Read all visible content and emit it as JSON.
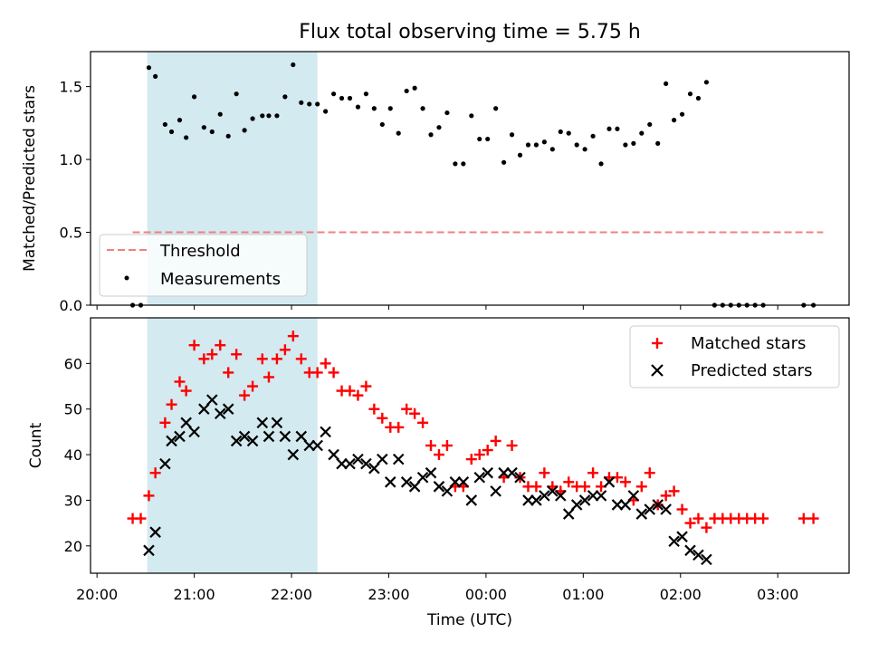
{
  "title": "Flux total observing time = 5.75 h",
  "colors": {
    "shade": "#d3eaf0",
    "threshold": "#f08080",
    "measurements": "#000000",
    "matched": "#ff0000",
    "predicted": "#000000"
  },
  "chart_data": [
    {
      "type": "scatter",
      "ylabel": "Matched/Predicted stars",
      "xlim": [
        "19:56",
        "03:44"
      ],
      "ylim": [
        0,
        1.74
      ],
      "yticks": [
        0.0,
        0.5,
        1.0,
        1.5
      ],
      "ytick_labels": [
        "0.0",
        "0.5",
        "1.0",
        "1.5"
      ],
      "shaded_interval": [
        "20:31",
        "22:16"
      ],
      "grid": false,
      "legend": {
        "position": "lower-left",
        "entries": [
          "Threshold",
          "Measurements"
        ]
      },
      "threshold": {
        "name": "Threshold",
        "value": 0.5,
        "x": [
          "20:22",
          "03:28"
        ],
        "style": "dashed"
      },
      "series": [
        {
          "name": "Measurements",
          "x": [
            "20:22",
            "20:27",
            "20:32",
            "20:36",
            "20:42",
            "20:46",
            "20:51",
            "20:55",
            "21:00",
            "21:06",
            "21:11",
            "21:16",
            "21:21",
            "21:26",
            "21:31",
            "21:36",
            "21:42",
            "21:46",
            "21:51",
            "21:56",
            "22:01",
            "22:06",
            "22:11",
            "22:16",
            "22:21",
            "22:26",
            "22:31",
            "22:36",
            "22:41",
            "22:46",
            "22:51",
            "22:56",
            "23:01",
            "23:06",
            "23:11",
            "23:16",
            "23:21",
            "23:26",
            "23:31",
            "23:36",
            "23:41",
            "23:46",
            "23:51",
            "23:56",
            "00:01",
            "00:06",
            "00:11",
            "00:16",
            "00:21",
            "00:26",
            "00:31",
            "00:36",
            "00:41",
            "00:46",
            "00:51",
            "00:56",
            "01:01",
            "01:06",
            "01:11",
            "01:16",
            "01:21",
            "01:26",
            "01:31",
            "01:36",
            "01:41",
            "01:46",
            "01:51",
            "01:56",
            "02:01",
            "02:06",
            "02:11",
            "02:16",
            "02:21",
            "02:26",
            "02:31",
            "02:36",
            "02:41",
            "02:46",
            "02:51",
            "03:16",
            "03:22"
          ],
          "y": [
            0,
            0,
            1.63,
            1.57,
            1.24,
            1.19,
            1.27,
            1.15,
            1.43,
            1.22,
            1.19,
            1.31,
            1.16,
            1.45,
            1.2,
            1.28,
            1.3,
            1.3,
            1.3,
            1.43,
            1.65,
            1.39,
            1.38,
            1.38,
            1.33,
            1.45,
            1.42,
            1.42,
            1.36,
            1.45,
            1.35,
            1.24,
            1.35,
            1.18,
            1.47,
            1.49,
            1.35,
            1.17,
            1.22,
            1.32,
            0.97,
            0.97,
            1.3,
            1.14,
            1.14,
            1.35,
            0.98,
            1.17,
            1.03,
            1.1,
            1.1,
            1.12,
            1.07,
            1.19,
            1.18,
            1.1,
            1.07,
            1.16,
            0.97,
            1.21,
            1.21,
            1.1,
            1.11,
            1.18,
            1.24,
            1.11,
            1.52,
            1.27,
            1.31,
            1.45,
            1.42,
            1.53,
            0,
            0,
            0,
            0,
            0,
            0,
            0,
            0,
            0
          ]
        }
      ]
    },
    {
      "type": "scatter",
      "xlabel": "Time (UTC)",
      "ylabel": "Count",
      "xlim": [
        "19:56",
        "03:44"
      ],
      "ylim": [
        14,
        70
      ],
      "xticks": [
        "20:00",
        "21:00",
        "22:00",
        "23:00",
        "00:00",
        "01:00",
        "02:00",
        "03:00"
      ],
      "yticks": [
        20,
        30,
        40,
        50,
        60
      ],
      "shaded_interval": [
        "20:31",
        "22:16"
      ],
      "grid": false,
      "legend": {
        "position": "top-right",
        "entries": [
          "Matched stars",
          "Predicted stars"
        ]
      },
      "series": [
        {
          "name": "Matched stars",
          "marker": "+",
          "x": [
            "20:22",
            "20:27",
            "20:32",
            "20:36",
            "20:42",
            "20:46",
            "20:51",
            "20:55",
            "21:00",
            "21:06",
            "21:11",
            "21:16",
            "21:21",
            "21:26",
            "21:31",
            "21:36",
            "21:42",
            "21:46",
            "21:51",
            "21:56",
            "22:01",
            "22:06",
            "22:11",
            "22:16",
            "22:21",
            "22:26",
            "22:31",
            "22:36",
            "22:41",
            "22:46",
            "22:51",
            "22:56",
            "23:01",
            "23:06",
            "23:11",
            "23:16",
            "23:21",
            "23:26",
            "23:31",
            "23:36",
            "23:41",
            "23:46",
            "23:51",
            "23:56",
            "00:01",
            "00:06",
            "00:11",
            "00:16",
            "00:21",
            "00:26",
            "00:31",
            "00:36",
            "00:41",
            "00:46",
            "00:51",
            "00:56",
            "01:01",
            "01:06",
            "01:11",
            "01:16",
            "01:21",
            "01:26",
            "01:31",
            "01:36",
            "01:41",
            "01:46",
            "01:51",
            "01:56",
            "02:01",
            "02:06",
            "02:11",
            "02:16",
            "02:21",
            "02:26",
            "02:31",
            "02:36",
            "02:41",
            "02:46",
            "02:51",
            "03:16",
            "03:22"
          ],
          "y": [
            26,
            26,
            31,
            36,
            47,
            51,
            56,
            54,
            64,
            61,
            62,
            64,
            58,
            62,
            53,
            55,
            61,
            57,
            61,
            63,
            66,
            61,
            58,
            58,
            60,
            58,
            54,
            54,
            53,
            55,
            50,
            48,
            46,
            46,
            50,
            49,
            47,
            42,
            40,
            42,
            33,
            33,
            39,
            40,
            41,
            43,
            35,
            42,
            35,
            33,
            33,
            36,
            33,
            32,
            34,
            33,
            33,
            36,
            33,
            35,
            35,
            34,
            30,
            33,
            36,
            29,
            31,
            32,
            28,
            25,
            26,
            24,
            26,
            26,
            26,
            26,
            26,
            26,
            26,
            26,
            26
          ]
        },
        {
          "name": "Predicted stars",
          "marker": "x",
          "x": [
            "20:32",
            "20:36",
            "20:42",
            "20:46",
            "20:51",
            "20:55",
            "21:00",
            "21:06",
            "21:11",
            "21:16",
            "21:21",
            "21:26",
            "21:31",
            "21:36",
            "21:42",
            "21:46",
            "21:51",
            "21:56",
            "22:01",
            "22:06",
            "22:11",
            "22:16",
            "22:21",
            "22:26",
            "22:31",
            "22:36",
            "22:41",
            "22:46",
            "22:51",
            "22:56",
            "23:01",
            "23:06",
            "23:11",
            "23:16",
            "23:21",
            "23:26",
            "23:31",
            "23:36",
            "23:41",
            "23:46",
            "23:51",
            "23:56",
            "00:01",
            "00:06",
            "00:11",
            "00:16",
            "00:21",
            "00:26",
            "00:31",
            "00:36",
            "00:41",
            "00:46",
            "00:51",
            "00:56",
            "01:01",
            "01:06",
            "01:11",
            "01:16",
            "01:21",
            "01:26",
            "01:31",
            "01:36",
            "01:41",
            "01:46",
            "01:51",
            "01:56",
            "02:01",
            "02:06",
            "02:11",
            "02:16"
          ],
          "y": [
            19,
            23,
            38,
            43,
            44,
            47,
            45,
            50,
            52,
            49,
            50,
            43,
            44,
            43,
            47,
            44,
            47,
            44,
            40,
            44,
            42,
            42,
            45,
            40,
            38,
            38,
            39,
            38,
            37,
            39,
            34,
            39,
            34,
            33,
            35,
            36,
            33,
            32,
            34,
            34,
            30,
            35,
            36,
            32,
            36,
            36,
            35,
            30,
            30,
            31,
            32,
            31,
            27,
            29,
            30,
            31,
            31,
            34,
            29,
            29,
            31,
            27,
            28,
            29,
            28,
            21,
            22,
            19,
            18,
            17
          ]
        }
      ]
    }
  ]
}
